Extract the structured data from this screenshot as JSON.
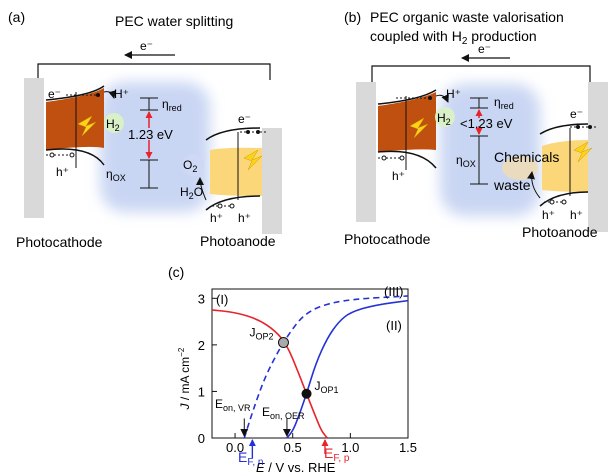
{
  "panel_a": {
    "tag": "(a)",
    "title": "PEC water splitting",
    "electron": "e⁻",
    "hole": "h⁺",
    "h_plus": "H⁺",
    "h2": "H",
    "h2_sub": "2",
    "eta": "η",
    "red_sub": "red",
    "ox_sub": "OX",
    "energy": "1.23 eV",
    "o2": "O",
    "o2_sub": "2",
    "h2o": "H",
    "h2o_sub": "2",
    "h2o_end": "O",
    "photocathode": "Photocathode",
    "photoanode": "Photoanode"
  },
  "panel_b": {
    "tag": "(b)",
    "title_line1": "PEC organic waste valorisation",
    "title_line2": "coupled with H",
    "title_sub": "2",
    "title_end": " production",
    "electron": "e⁻",
    "hole": "h⁺",
    "h_plus": "H⁺",
    "h2": "H",
    "h2_sub": "2",
    "eta": "η",
    "red_sub": "red",
    "ox_sub": "OX",
    "energy": "<1.23 eV",
    "chemicals": "Chemicals",
    "waste": "waste",
    "photocathode": "Photocathode",
    "photoanode": "Photoanode"
  },
  "panel_c": {
    "tag": "(c)",
    "ylabel_J": "J",
    "ylabel_unit": " / mA cm",
    "ylabel_exp": "−2",
    "xlabel_E": "E",
    "xlabel_unit": " / V vs. RHE",
    "xticks": [
      "0.0",
      "0.5",
      "1.0",
      "1.5"
    ],
    "yticks": [
      "0",
      "1",
      "2",
      "3"
    ],
    "curve_I": "(I)",
    "curve_II": "(II)",
    "curve_III": "(III)",
    "jop2": "J",
    "jop2_sub": "OP2",
    "jop1": "J",
    "jop1_sub": "OP1",
    "eon_vr": "E",
    "eon_vr_sub": "on, VR",
    "eon_oer": "E",
    "eon_oer_sub": "on, OER",
    "efn": "E",
    "efn_sub": "F, n",
    "efp": "E",
    "efp_sub": "F, p"
  },
  "colors": {
    "cathode_fill": "#c0500f",
    "anode_fill": "#fbd77a",
    "electrolyte": "#c9d6f3",
    "curve_I": "#e8232a",
    "curve_II": "#2431d6",
    "curve_III": "#2431d6",
    "h2_bubble": "#d9f0c8",
    "o2_bubble": "#cfd8f5"
  },
  "chart_data": {
    "type": "line",
    "xlabel": "E / V vs. RHE",
    "ylabel": "J / mA cm−2",
    "xlim": [
      -0.2,
      1.5
    ],
    "ylim": [
      0,
      3.2
    ],
    "series": [
      {
        "name": "(I)",
        "style": "solid",
        "color": "red",
        "x": [
          -0.2,
          0.0,
          0.2,
          0.35,
          0.45,
          0.55,
          0.62,
          0.7,
          0.75,
          0.8
        ],
        "y": [
          2.75,
          2.7,
          2.55,
          2.3,
          2.0,
          1.4,
          0.95,
          0.45,
          0.15,
          0.0
        ]
      },
      {
        "name": "(II)",
        "style": "solid",
        "color": "blue",
        "x": [
          0.45,
          0.5,
          0.55,
          0.62,
          0.7,
          0.8,
          0.9,
          1.0,
          1.2,
          1.5
        ],
        "y": [
          0.0,
          0.15,
          0.45,
          0.95,
          1.6,
          2.15,
          2.5,
          2.7,
          2.85,
          2.95
        ]
      },
      {
        "name": "(III)",
        "style": "dashed",
        "color": "blue",
        "x": [
          0.08,
          0.15,
          0.25,
          0.35,
          0.42,
          0.5,
          0.6,
          0.75,
          1.0,
          1.5
        ],
        "y": [
          0.0,
          0.55,
          1.25,
          1.75,
          2.05,
          2.35,
          2.65,
          2.85,
          2.98,
          3.05
        ]
      }
    ],
    "points": [
      {
        "label": "J_OP2",
        "x": 0.42,
        "y": 2.05
      },
      {
        "label": "J_OP1",
        "x": 0.62,
        "y": 0.95
      }
    ],
    "markers": [
      {
        "label": "E_on,VR",
        "x": 0.08
      },
      {
        "label": "E_on,OER",
        "x": 0.45
      },
      {
        "label": "E_F,n",
        "x": 0.15
      },
      {
        "label": "E_F,p",
        "x": 0.78
      }
    ]
  }
}
